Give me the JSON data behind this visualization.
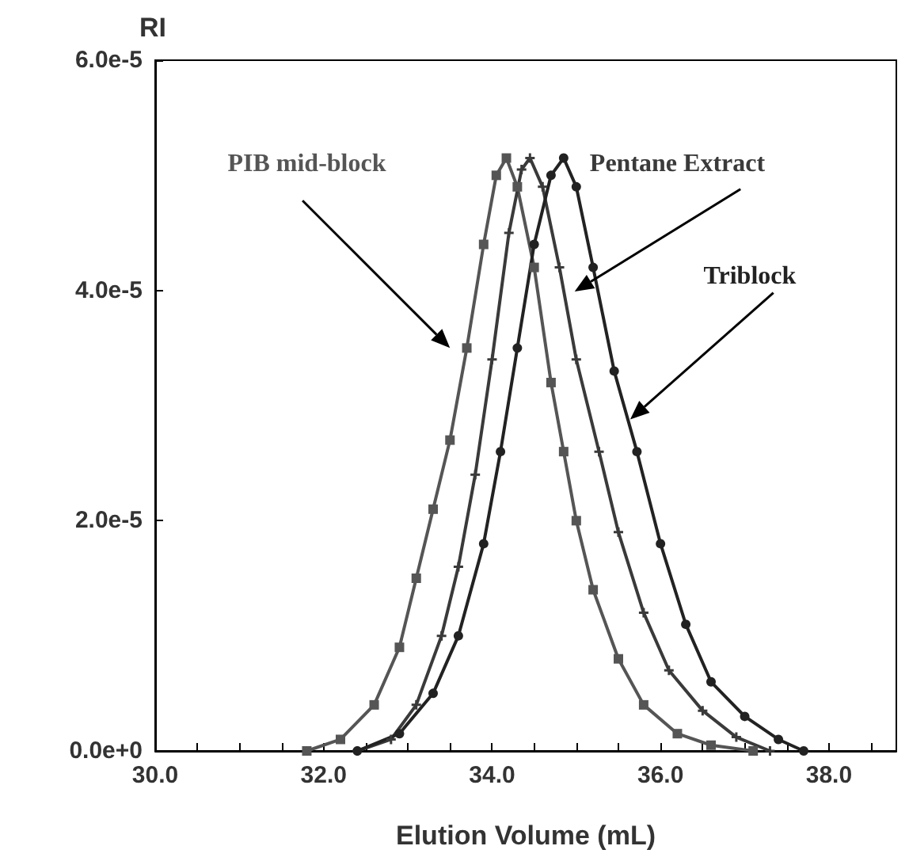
{
  "chart_data": {
    "type": "line",
    "xlabel": "Elution Volume (mL)",
    "ylabel": "RI",
    "xlim": [
      30,
      38.8
    ],
    "ylim": [
      0,
      6e-05
    ],
    "xticks": [
      {
        "value": 30,
        "label": "30.0"
      },
      {
        "value": 30.5,
        "label": null
      },
      {
        "value": 31,
        "label": null
      },
      {
        "value": 31.5,
        "label": null
      },
      {
        "value": 32,
        "label": "32.0"
      },
      {
        "value": 32.5,
        "label": null
      },
      {
        "value": 33,
        "label": null
      },
      {
        "value": 33.5,
        "label": null
      },
      {
        "value": 34,
        "label": "34.0"
      },
      {
        "value": 34.5,
        "label": null
      },
      {
        "value": 35,
        "label": null
      },
      {
        "value": 35.5,
        "label": null
      },
      {
        "value": 36,
        "label": "36.0"
      },
      {
        "value": 36.5,
        "label": null
      },
      {
        "value": 37,
        "label": null
      },
      {
        "value": 37.5,
        "label": null
      },
      {
        "value": 38,
        "label": "38.0"
      },
      {
        "value": 38.5,
        "label": null
      }
    ],
    "yticks": [
      {
        "value": 0,
        "label": "0.0e+0"
      },
      {
        "value": 2e-05,
        "label": "2.0e-5"
      },
      {
        "value": 4e-05,
        "label": "4.0e-5"
      },
      {
        "value": 6e-05,
        "label": "6.0e-5"
      }
    ],
    "grid": false,
    "legend": false,
    "line_style": "solid",
    "series": [
      {
        "name": "PIB mid-block",
        "color": "#555555",
        "marker": "square",
        "x": [
          31.8,
          32.2,
          32.6,
          32.9,
          33.1,
          33.3,
          33.5,
          33.7,
          33.9,
          34.05,
          34.17,
          34.3,
          34.5,
          34.7,
          34.85,
          35.0,
          35.2,
          35.5,
          35.8,
          36.2,
          36.6,
          37.1
        ],
        "values": [
          0,
          1e-06,
          4e-06,
          9e-06,
          1.5e-05,
          2.1e-05,
          2.7e-05,
          3.5e-05,
          4.4e-05,
          5e-05,
          5.15e-05,
          4.9e-05,
          4.2e-05,
          3.2e-05,
          2.6e-05,
          2e-05,
          1.4e-05,
          8e-06,
          4e-06,
          1.5e-06,
          5e-07,
          0
        ]
      },
      {
        "name": "Pentane Extract",
        "color": "#3a3a3a",
        "marker": "cross",
        "x": [
          32.4,
          32.8,
          33.1,
          33.4,
          33.6,
          33.8,
          34.0,
          34.2,
          34.35,
          34.45,
          34.6,
          34.8,
          35.0,
          35.27,
          35.5,
          35.8,
          36.1,
          36.5,
          36.9,
          37.3
        ],
        "values": [
          0,
          1e-06,
          4e-06,
          1e-05,
          1.6e-05,
          2.4e-05,
          3.4e-05,
          4.5e-05,
          5.05e-05,
          5.15e-05,
          4.9e-05,
          4.2e-05,
          3.4e-05,
          2.6e-05,
          1.9e-05,
          1.2e-05,
          7e-06,
          3.5e-06,
          1.2e-06,
          0
        ]
      },
      {
        "name": "Triblock",
        "color": "#222222",
        "marker": "circle",
        "x": [
          32.4,
          32.9,
          33.3,
          33.6,
          33.9,
          34.1,
          34.3,
          34.5,
          34.7,
          34.85,
          35.0,
          35.2,
          35.45,
          35.72,
          36.0,
          36.3,
          36.6,
          37.0,
          37.4,
          37.7
        ],
        "values": [
          0,
          1.5e-06,
          5e-06,
          1e-05,
          1.8e-05,
          2.6e-05,
          3.5e-05,
          4.4e-05,
          5e-05,
          5.15e-05,
          4.9e-05,
          4.2e-05,
          3.3e-05,
          2.6e-05,
          1.8e-05,
          1.1e-05,
          6e-06,
          3e-06,
          1e-06,
          0
        ]
      }
    ]
  }
}
